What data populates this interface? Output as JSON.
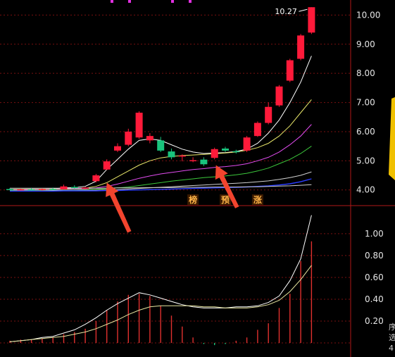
{
  "colors": {
    "background": "#000000",
    "up": "#ff1a3a",
    "down": "#19c37d",
    "grid": "#7a1010",
    "axis_text": "#e6e6e6",
    "ma1": "#ffffff",
    "ma2": "#e8e66a",
    "ma3": "#e24cf0",
    "ma4": "#3cc83c",
    "ma5": "#d0d0d0",
    "ma6": "#2a3cff",
    "volume_bar": "#e0302e",
    "volume_ma1": "#ffffff",
    "volume_ma2": "#e8e6a0",
    "arrow": "#f2442e",
    "tag_bg": "#3a1a00",
    "tag_text": "#ffb347",
    "side_panel": "#f0c000"
  },
  "chart_data": [
    {
      "type": "candlestick",
      "panel": "price",
      "title": "",
      "xlabel": "",
      "ylabel": "",
      "ylim": [
        3.7,
        10.3
      ],
      "y_ticks": [
        "10.00",
        "9.00",
        "8.00",
        "7.00",
        "6.00",
        "5.00",
        "4.00"
      ],
      "y_tick_values": [
        10.0,
        9.0,
        8.0,
        7.0,
        6.0,
        5.0,
        4.0
      ],
      "grid": true,
      "peak_label": "10.27",
      "peak_value": 10.27,
      "markers": [
        "榜",
        "预",
        "涨"
      ],
      "marker_positions": [
        17,
        20,
        23
      ],
      "arrows_at": [
        9,
        19
      ],
      "candles": [
        {
          "o": 4.03,
          "h": 4.06,
          "l": 3.99,
          "c": 4.0
        },
        {
          "o": 4.0,
          "h": 4.05,
          "l": 3.98,
          "c": 4.02
        },
        {
          "o": 4.02,
          "h": 4.07,
          "l": 3.99,
          "c": 4.01
        },
        {
          "o": 4.01,
          "h": 4.05,
          "l": 3.98,
          "c": 4.03
        },
        {
          "o": 4.03,
          "h": 4.08,
          "l": 4.0,
          "c": 4.02
        },
        {
          "o": 4.02,
          "h": 4.18,
          "l": 4.01,
          "c": 4.12
        },
        {
          "o": 4.1,
          "h": 4.16,
          "l": 4.04,
          "c": 4.06
        },
        {
          "o": 4.06,
          "h": 4.1,
          "l": 4.02,
          "c": 4.08
        },
        {
          "o": 4.3,
          "h": 4.55,
          "l": 4.26,
          "c": 4.5
        },
        {
          "o": 4.7,
          "h": 5.05,
          "l": 4.68,
          "c": 4.98
        },
        {
          "o": 5.35,
          "h": 5.6,
          "l": 5.3,
          "c": 5.5
        },
        {
          "o": 5.55,
          "h": 6.1,
          "l": 5.5,
          "c": 6.0
        },
        {
          "o": 5.8,
          "h": 6.7,
          "l": 5.75,
          "c": 6.65
        },
        {
          "o": 5.7,
          "h": 5.95,
          "l": 5.6,
          "c": 5.85
        },
        {
          "o": 5.7,
          "h": 5.82,
          "l": 5.3,
          "c": 5.35
        },
        {
          "o": 5.32,
          "h": 5.42,
          "l": 5.05,
          "c": 5.12
        },
        {
          "o": 5.15,
          "h": 5.22,
          "l": 4.98,
          "c": 5.18
        },
        {
          "o": 5.0,
          "h": 5.12,
          "l": 4.95,
          "c": 5.02
        },
        {
          "o": 5.04,
          "h": 5.12,
          "l": 4.82,
          "c": 4.88
        },
        {
          "o": 5.1,
          "h": 5.45,
          "l": 5.05,
          "c": 5.4
        },
        {
          "o": 5.42,
          "h": 5.48,
          "l": 5.3,
          "c": 5.35
        },
        {
          "o": 5.33,
          "h": 5.38,
          "l": 5.25,
          "c": 5.3
        },
        {
          "o": 5.35,
          "h": 5.85,
          "l": 5.3,
          "c": 5.8
        },
        {
          "o": 5.85,
          "h": 6.35,
          "l": 5.82,
          "c": 6.3
        },
        {
          "o": 6.3,
          "h": 7.0,
          "l": 6.25,
          "c": 6.85
        },
        {
          "o": 6.9,
          "h": 7.6,
          "l": 6.85,
          "c": 7.55
        },
        {
          "o": 7.75,
          "h": 8.5,
          "l": 7.7,
          "c": 8.45
        },
        {
          "o": 8.5,
          "h": 9.35,
          "l": 8.45,
          "c": 9.3
        },
        {
          "o": 9.4,
          "h": 10.27,
          "l": 9.35,
          "c": 10.27
        }
      ],
      "series": [
        {
          "values": [
            4.02,
            4.02,
            4.03,
            4.03,
            4.04,
            4.07,
            4.08,
            4.12,
            4.3,
            4.7,
            5.05,
            5.4,
            5.7,
            5.75,
            5.7,
            5.55,
            5.4,
            5.3,
            5.25,
            5.27,
            5.28,
            5.32,
            5.4,
            5.6,
            5.95,
            6.4,
            7.0,
            7.7,
            8.6
          ]
        },
        {
          "values": [
            4.02,
            4.02,
            4.02,
            4.03,
            4.03,
            4.04,
            4.05,
            4.06,
            4.12,
            4.25,
            4.45,
            4.65,
            4.85,
            5.0,
            5.1,
            5.15,
            5.18,
            5.2,
            5.22,
            5.24,
            5.27,
            5.3,
            5.36,
            5.45,
            5.6,
            5.85,
            6.2,
            6.65,
            7.1
          ]
        },
        {
          "values": [
            4.0,
            4.0,
            4.01,
            4.01,
            4.02,
            4.02,
            4.03,
            4.04,
            4.07,
            4.12,
            4.2,
            4.3,
            4.4,
            4.48,
            4.55,
            4.6,
            4.65,
            4.7,
            4.73,
            4.77,
            4.8,
            4.84,
            4.9,
            5.0,
            5.12,
            5.3,
            5.55,
            5.85,
            6.25
          ]
        },
        {
          "values": [
            3.98,
            3.98,
            3.98,
            3.99,
            3.99,
            4.0,
            4.0,
            4.01,
            4.02,
            4.04,
            4.07,
            4.1,
            4.15,
            4.2,
            4.25,
            4.3,
            4.34,
            4.38,
            4.42,
            4.45,
            4.48,
            4.52,
            4.57,
            4.65,
            4.75,
            4.9,
            5.05,
            5.25,
            5.5
          ]
        },
        {
          "values": [
            3.97,
            3.97,
            3.97,
            3.97,
            3.98,
            3.98,
            3.98,
            3.99,
            3.99,
            4.0,
            4.01,
            4.03,
            4.05,
            4.07,
            4.09,
            4.11,
            4.13,
            4.15,
            4.17,
            4.19,
            4.21,
            4.23,
            4.25,
            4.28,
            4.31,
            4.36,
            4.42,
            4.5,
            4.62
          ]
        },
        {
          "values": [
            3.96,
            3.96,
            3.96,
            3.96,
            3.96,
            3.97,
            3.97,
            3.97,
            3.97,
            3.98,
            3.98,
            3.99,
            4.0,
            4.01,
            4.02,
            4.03,
            4.04,
            4.05,
            4.06,
            4.07,
            4.08,
            4.09,
            4.1,
            4.12,
            4.14,
            4.17,
            4.21,
            4.28,
            4.38
          ]
        },
        {
          "values": [
            4.06,
            4.06,
            4.06,
            4.06,
            4.06,
            4.06,
            4.06,
            4.06,
            4.06,
            4.06,
            4.07,
            4.07,
            4.07,
            4.08,
            4.08,
            4.08,
            4.09,
            4.09,
            4.09,
            4.1,
            4.1,
            4.1,
            4.11,
            4.11,
            4.12,
            4.13,
            4.14,
            4.16,
            4.18
          ]
        }
      ]
    },
    {
      "type": "bar",
      "panel": "volume",
      "title": "",
      "xlabel": "",
      "ylabel": "",
      "ylim": [
        0,
        1.18
      ],
      "y_ticks": [
        "1.00",
        "0.80",
        "0.60",
        "0.40",
        "0.20"
      ],
      "y_tick_values": [
        1.0,
        0.8,
        0.6,
        0.4,
        0.2
      ],
      "grid": true,
      "values": [
        0.02,
        0.03,
        0.03,
        0.04,
        0.05,
        0.08,
        0.1,
        0.13,
        0.2,
        0.3,
        0.38,
        0.44,
        0.45,
        0.43,
        0.34,
        0.25,
        0.15,
        0.05,
        -0.01,
        -0.02,
        -0.01,
        0.02,
        0.05,
        0.12,
        0.18,
        0.32,
        0.45,
        0.75,
        0.93
      ],
      "series": [
        {
          "values": [
            0.01,
            0.02,
            0.03,
            0.05,
            0.06,
            0.09,
            0.12,
            0.17,
            0.23,
            0.3,
            0.36,
            0.41,
            0.46,
            0.44,
            0.41,
            0.38,
            0.35,
            0.33,
            0.32,
            0.32,
            0.32,
            0.33,
            0.33,
            0.34,
            0.37,
            0.43,
            0.57,
            0.77,
            1.17
          ]
        },
        {
          "values": [
            0.01,
            0.02,
            0.03,
            0.04,
            0.05,
            0.06,
            0.08,
            0.1,
            0.13,
            0.17,
            0.21,
            0.26,
            0.3,
            0.33,
            0.34,
            0.34,
            0.34,
            0.34,
            0.33,
            0.33,
            0.32,
            0.32,
            0.32,
            0.33,
            0.35,
            0.39,
            0.47,
            0.58,
            0.71
          ]
        }
      ]
    }
  ],
  "side_panel": {
    "chars": [
      "序",
      "选",
      "4"
    ]
  },
  "top_marks": {
    "color": "#e030e0"
  }
}
